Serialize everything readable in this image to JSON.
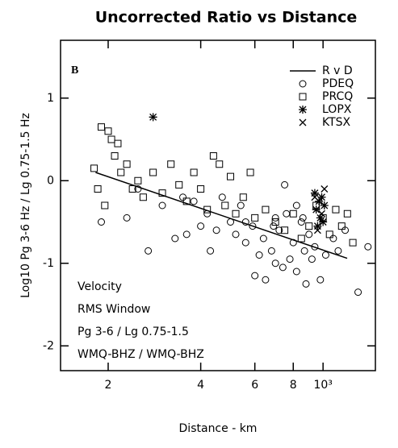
{
  "chart_data": {
    "type": "scatter",
    "title": "Uncorrected Ratio vs Distance",
    "xlabel": "Distance - km",
    "ylabel": "Log10 Pg 3-6 Hz / Lg 0.75-1.5 Hz",
    "xscale": "log",
    "xlim": [
      140,
      1480
    ],
    "ylim": [
      -2.3,
      1.7
    ],
    "xticks": [
      {
        "value": 200,
        "label": "2"
      },
      {
        "value": 400,
        "label": "4"
      },
      {
        "value": 600,
        "label": "6"
      },
      {
        "value": 800,
        "label": "8"
      },
      {
        "value": 1000,
        "label": "10³"
      }
    ],
    "yticks": [
      -2,
      -1,
      0,
      1
    ],
    "legend": "upper right",
    "annotations": [
      "B",
      "Velocity",
      "RMS Window",
      "Pg 3-6 / Lg 0.75-1.5",
      "WMQ-BHZ / WMQ-BHZ"
    ],
    "series": [
      {
        "name": "R v D",
        "marker": "line",
        "color": "#000000",
        "x": [
          182,
          1198
        ],
        "values": [
          0.1,
          -0.94
        ]
      },
      {
        "name": "PDEQ",
        "marker": "circle",
        "color": "#000000",
        "x": [
          190,
          230,
          270,
          300,
          330,
          360,
          380,
          400,
          420,
          450,
          470,
          500,
          520,
          540,
          560,
          590,
          600,
          620,
          640,
          650,
          680,
          700,
          720,
          740,
          760,
          780,
          800,
          820,
          850,
          870,
          880,
          900,
          920,
          940,
          980,
          1020,
          1080,
          1120,
          1180,
          1300,
          1400,
          750,
          700,
          820,
          250,
          350,
          430,
          560,
          690,
          860
        ],
        "values": [
          -0.5,
          -0.45,
          -0.85,
          -0.3,
          -0.7,
          -0.65,
          -0.25,
          -0.55,
          -0.4,
          -0.6,
          -0.2,
          -0.5,
          -0.65,
          -0.3,
          -0.75,
          -0.55,
          -1.15,
          -0.9,
          -0.7,
          -1.2,
          -0.85,
          -1.0,
          -0.6,
          -1.05,
          -0.4,
          -0.95,
          -0.75,
          -1.1,
          -0.5,
          -0.85,
          -1.25,
          -0.65,
          -0.95,
          -0.8,
          -1.2,
          -0.9,
          -0.7,
          -0.85,
          -0.6,
          -1.35,
          -0.8,
          -0.05,
          -0.45,
          -0.3,
          -0.1,
          -0.2,
          -0.85,
          -0.5,
          -0.55,
          -0.45
        ]
      },
      {
        "name": "PRCQ",
        "marker": "square",
        "color": "#000000",
        "x": [
          180,
          190,
          200,
          205,
          210,
          215,
          220,
          230,
          240,
          250,
          260,
          280,
          300,
          320,
          340,
          360,
          380,
          400,
          420,
          440,
          460,
          480,
          500,
          520,
          550,
          580,
          600,
          650,
          700,
          750,
          800,
          850,
          900,
          950,
          1000,
          1050,
          1100,
          1150,
          1200,
          1250,
          195,
          185
        ],
        "values": [
          0.15,
          0.65,
          0.6,
          0.5,
          0.3,
          0.45,
          0.1,
          0.2,
          -0.1,
          0.0,
          -0.2,
          0.1,
          -0.15,
          0.2,
          -0.05,
          -0.25,
          0.1,
          -0.1,
          -0.35,
          0.3,
          0.2,
          -0.3,
          0.05,
          -0.4,
          -0.2,
          0.1,
          -0.45,
          -0.35,
          -0.5,
          -0.6,
          -0.4,
          -0.7,
          -0.55,
          -0.3,
          -0.45,
          -0.65,
          -0.35,
          -0.55,
          -0.4,
          -0.75,
          -0.3,
          -0.1
        ]
      },
      {
        "name": "LOPX",
        "marker": "asterisk",
        "color": "#000000",
        "x": [
          280,
          940,
          950,
          960,
          970,
          980,
          990,
          1000,
          1010
        ],
        "values": [
          0.77,
          -0.15,
          -0.35,
          -0.55,
          -0.25,
          -0.45,
          -0.2,
          -0.5,
          -0.3
        ]
      },
      {
        "name": "KTSX",
        "marker": "x",
        "color": "#000000",
        "x": [
          940,
          960,
          990,
          1010
        ],
        "values": [
          -0.2,
          -0.6,
          -0.4,
          -0.1
        ]
      }
    ]
  }
}
